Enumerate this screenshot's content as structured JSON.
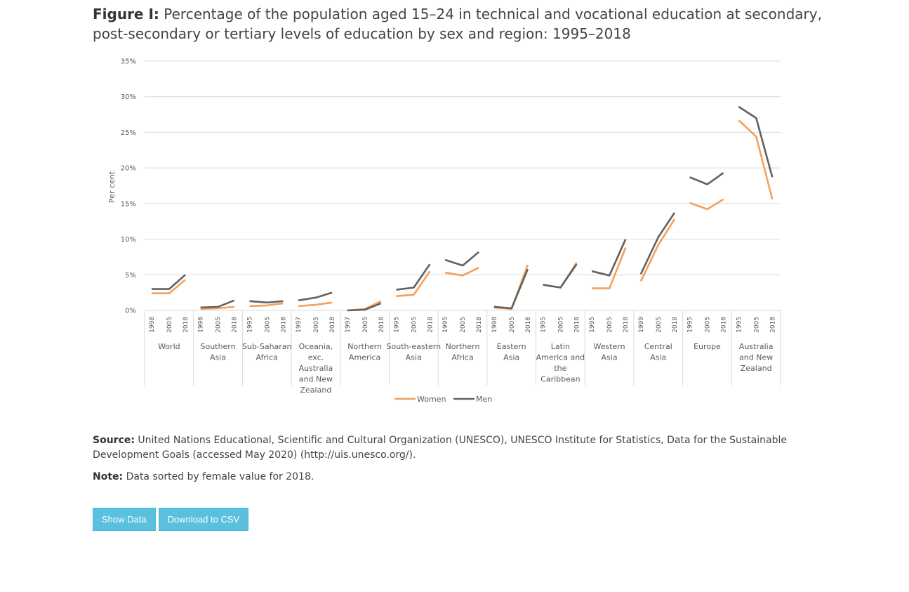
{
  "figure": {
    "label": "Figure I:",
    "title": "Percentage of the population aged 15–24 in technical and vocational education at secondary, post-secondary or tertiary levels of education by sex and region: 1995–2018"
  },
  "chart_data": {
    "type": "line",
    "ylabel": "Per cent",
    "ylim": [
      0,
      35
    ],
    "yticks": [
      "0%",
      "5%",
      "10%",
      "15%",
      "20%",
      "25%",
      "30%",
      "35%"
    ],
    "grid": true,
    "legend_position": "bottom",
    "colors": {
      "Women": "#f4a05a",
      "Men": "#616161"
    },
    "groups": [
      {
        "name": "World",
        "years": [
          "1998",
          "2005",
          "2018"
        ],
        "Women": [
          2.4,
          2.4,
          4.3
        ],
        "Men": [
          3.0,
          3.0,
          5.0
        ]
      },
      {
        "name": "Southern Asia",
        "years": [
          "1998",
          "2005",
          "2018"
        ],
        "Women": [
          0.2,
          0.3,
          0.5
        ],
        "Men": [
          0.4,
          0.5,
          1.4
        ]
      },
      {
        "name": "Sub-Saharan Africa",
        "years": [
          "1995",
          "2005",
          "2018"
        ],
        "Women": [
          0.6,
          0.7,
          1.0
        ],
        "Men": [
          1.3,
          1.1,
          1.3
        ]
      },
      {
        "name": "Oceania, exc. Australia and New Zealand",
        "years": [
          "1997",
          "2005",
          "2018"
        ],
        "Women": [
          0.6,
          0.8,
          1.1
        ],
        "Men": [
          1.4,
          1.8,
          2.5
        ]
      },
      {
        "name": "Northern America",
        "years": [
          "1997",
          "2005",
          "2018"
        ],
        "Women": [
          0.0,
          0.2,
          1.3
        ],
        "Men": [
          0.0,
          0.1,
          1.0
        ]
      },
      {
        "name": "South-eastern Asia",
        "years": [
          "1995",
          "2005",
          "2018"
        ],
        "Women": [
          2.0,
          2.2,
          5.5
        ],
        "Men": [
          2.9,
          3.2,
          6.5
        ]
      },
      {
        "name": "Northern Africa",
        "years": [
          "1995",
          "2005",
          "2018"
        ],
        "Women": [
          5.3,
          4.9,
          6.0
        ],
        "Men": [
          7.1,
          6.3,
          8.2
        ]
      },
      {
        "name": "Eastern Asia",
        "years": [
          "1998",
          "2005",
          "2018"
        ],
        "Women": [
          0.4,
          0.2,
          6.4
        ],
        "Men": [
          0.5,
          0.3,
          5.8
        ]
      },
      {
        "name": "Latin America and the Caribbean",
        "years": [
          "1995",
          "2005",
          "2018"
        ],
        "Women": [
          3.6,
          3.2,
          6.7
        ],
        "Men": [
          3.6,
          3.2,
          6.5
        ]
      },
      {
        "name": "Western Asia",
        "years": [
          "1995",
          "2005",
          "2018"
        ],
        "Women": [
          3.1,
          3.1,
          8.8
        ],
        "Men": [
          5.5,
          4.9,
          10.0
        ]
      },
      {
        "name": "Central Asia",
        "years": [
          "1999",
          "2005",
          "2018"
        ],
        "Women": [
          4.1,
          9.2,
          12.8
        ],
        "Men": [
          5.1,
          10.3,
          13.7
        ]
      },
      {
        "name": "Europe",
        "years": [
          "1995",
          "2005",
          "2018"
        ],
        "Women": [
          15.1,
          14.2,
          15.6
        ],
        "Men": [
          18.7,
          17.7,
          19.3
        ]
      },
      {
        "name": "Australia and New Zealand",
        "years": [
          "1995",
          "2005",
          "2018"
        ],
        "Women": [
          26.7,
          24.4,
          15.6
        ],
        "Men": [
          28.6,
          27.0,
          18.7
        ]
      }
    ]
  },
  "legend": {
    "women": "Women",
    "men": "Men"
  },
  "source": {
    "label": "Source:",
    "text": "United Nations Educational, Scientific and Cultural Organization (UNESCO), UNESCO Institute for Statistics, Data for the Sustainable Development Goals (accessed May 2020) (http://uis.unesco.org/)."
  },
  "note": {
    "label": "Note:",
    "text": "Data sorted by female value for 2018."
  },
  "buttons": {
    "show_data": "Show Data",
    "download_csv": "Download to CSV"
  }
}
